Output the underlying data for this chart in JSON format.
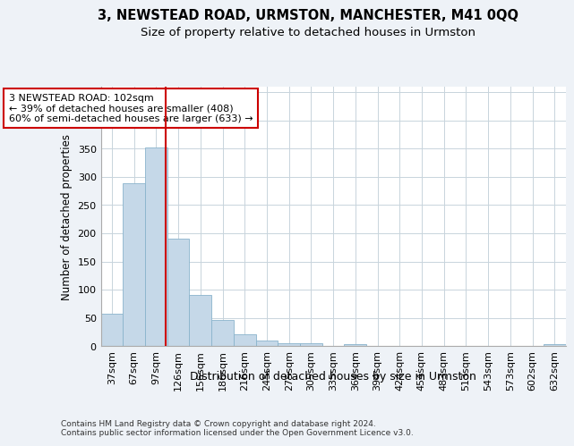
{
  "title1": "3, NEWSTEAD ROAD, URMSTON, MANCHESTER, M41 0QQ",
  "title2": "Size of property relative to detached houses in Urmston",
  "xlabel": "Distribution of detached houses by size in Urmston",
  "ylabel": "Number of detached properties",
  "footnote": "Contains HM Land Registry data © Crown copyright and database right 2024.\nContains public sector information licensed under the Open Government Licence v3.0.",
  "categories": [
    "37sqm",
    "67sqm",
    "97sqm",
    "126sqm",
    "156sqm",
    "186sqm",
    "216sqm",
    "245sqm",
    "275sqm",
    "305sqm",
    "335sqm",
    "364sqm",
    "394sqm",
    "424sqm",
    "454sqm",
    "483sqm",
    "513sqm",
    "543sqm",
    "573sqm",
    "602sqm",
    "632sqm"
  ],
  "values": [
    57,
    289,
    352,
    191,
    91,
    46,
    21,
    9,
    5,
    5,
    0,
    4,
    0,
    0,
    0,
    0,
    0,
    0,
    0,
    0,
    4
  ],
  "bar_color": "#c5d8e8",
  "bar_edge_color": "#8ab4cc",
  "vline_x": 2.45,
  "vline_color": "#cc0000",
  "annotation_text": "3 NEWSTEAD ROAD: 102sqm\n← 39% of detached houses are smaller (408)\n60% of semi-detached houses are larger (633) →",
  "annotation_box_color": "white",
  "annotation_box_edge_color": "#cc0000",
  "ylim": [
    0,
    460
  ],
  "yticks": [
    0,
    50,
    100,
    150,
    200,
    250,
    300,
    350,
    400,
    450
  ],
  "background_color": "#eef2f7",
  "plot_background": "white",
  "grid_color": "#c8d4dc",
  "title1_fontsize": 10.5,
  "title2_fontsize": 9.5,
  "xlabel_fontsize": 9,
  "ylabel_fontsize": 8.5,
  "tick_fontsize": 8,
  "annotation_fontsize": 8,
  "footnote_fontsize": 6.5
}
